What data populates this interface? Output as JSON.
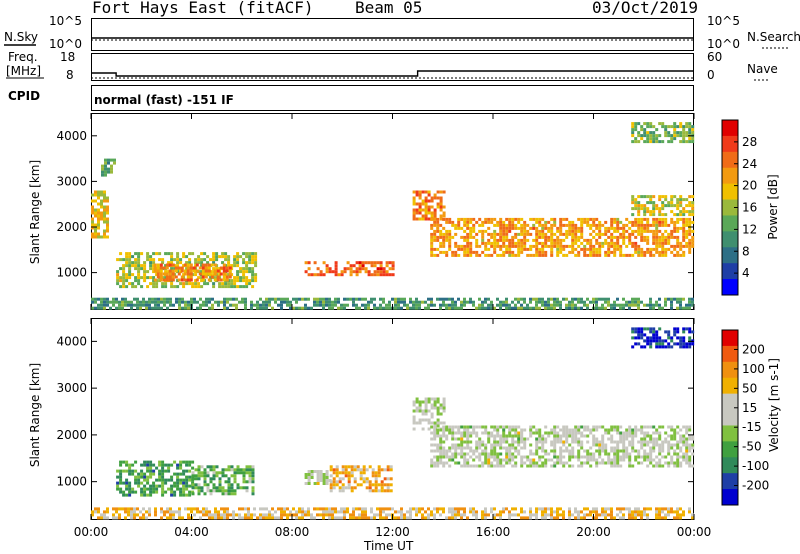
{
  "header": {
    "station": "Fort Hays East (fitACF)",
    "beam": "Beam 05",
    "date": "03/Oct/2019"
  },
  "top_panel": {
    "left_label": "N.Sky",
    "right_label": "N.Search",
    "left_ticks": [
      "10^5",
      "10^0"
    ],
    "right_ticks": [
      "10^5",
      "10^0"
    ]
  },
  "freq_panel": {
    "left_label_1": "Freq.",
    "left_label_2": "[MHz]",
    "right_label": "Nave",
    "left_ticks": [
      "18",
      "8"
    ],
    "right_ticks": [
      "60",
      "0"
    ]
  },
  "cpid": {
    "label": "CPID",
    "value": "normal (fast) -151 IF"
  },
  "colors": {
    "power_scale": [
      "#0000ff",
      "#1f3fa6",
      "#2d6f86",
      "#3f8f6f",
      "#5aa858",
      "#9ab93c",
      "#f0c000",
      "#f39a10",
      "#f06c18",
      "#f03a1a",
      "#e00000"
    ],
    "velocity_scale": [
      "#e00000",
      "#f05a10",
      "#f09010",
      "#f0b000",
      "#c8c8c0",
      "#c8c8c0",
      "#80c040",
      "#40a040",
      "#308a5a",
      "#1f3fa6",
      "#0000d0"
    ]
  },
  "chart_data": [
    {
      "type": "heatmap",
      "name": "power",
      "xlabel": "",
      "ylabel": "Slant Range [km]",
      "x_ticks": [
        "00:00",
        "04:00",
        "08:00",
        "12:00",
        "16:00",
        "20:00",
        "00:00"
      ],
      "y_ticks": [
        1000,
        2000,
        3000,
        4000
      ],
      "ylim": [
        180,
        4500
      ],
      "colorbar": {
        "label": "Power [dB]",
        "ticks": [
          4,
          8,
          12,
          16,
          20,
          24,
          28
        ]
      },
      "regions": [
        {
          "t0": 0.0,
          "t1": 0.6,
          "r0": 1800,
          "r1": 2800,
          "level": 0.6
        },
        {
          "t0": 0.4,
          "t1": 0.9,
          "r0": 3150,
          "r1": 3500,
          "level": 0.4
        },
        {
          "t0": 1.0,
          "t1": 6.5,
          "r0": 700,
          "r1": 1450,
          "level": 0.5
        },
        {
          "t0": 2.5,
          "t1": 5.5,
          "r0": 850,
          "r1": 1200,
          "level": 0.72
        },
        {
          "t0": 8.5,
          "t1": 12.0,
          "r0": 950,
          "r1": 1250,
          "level": 0.78
        },
        {
          "t0": 12.8,
          "t1": 14.0,
          "r0": 2150,
          "r1": 2800,
          "level": 0.72
        },
        {
          "t0": 13.5,
          "t1": 24.0,
          "r0": 1350,
          "r1": 2200,
          "level": 0.68
        },
        {
          "t0": 21.5,
          "t1": 24.0,
          "r0": 2300,
          "r1": 2700,
          "level": 0.55
        },
        {
          "t0": 21.5,
          "t1": 24.0,
          "r0": 3900,
          "r1": 4300,
          "level": 0.45
        },
        {
          "t0": 0.0,
          "t1": 24.0,
          "r0": 200,
          "r1": 450,
          "level": 0.35
        }
      ]
    },
    {
      "type": "heatmap",
      "name": "velocity",
      "xlabel": "Time UT",
      "ylabel": "Slant Range [km]",
      "x_ticks": [
        "00:00",
        "04:00",
        "08:00",
        "12:00",
        "16:00",
        "20:00",
        "00:00"
      ],
      "y_ticks": [
        1000,
        2000,
        3000,
        4000
      ],
      "ylim": [
        180,
        4500
      ],
      "colorbar": {
        "label": "Velocity [m s-1]",
        "ticks": [
          200,
          100,
          50,
          15,
          -15,
          -50,
          -100,
          -200
        ]
      },
      "regions": [
        {
          "t0": 1.0,
          "t1": 4.0,
          "r0": 700,
          "r1": 1450,
          "level": 0.7
        },
        {
          "t0": 4.0,
          "t1": 6.5,
          "r0": 750,
          "r1": 1350,
          "level": 0.66
        },
        {
          "t0": 8.5,
          "t1": 9.5,
          "r0": 950,
          "r1": 1250,
          "level": 0.5
        },
        {
          "t0": 9.5,
          "t1": 12.0,
          "r0": 800,
          "r1": 1350,
          "level": 0.3
        },
        {
          "t0": 12.8,
          "t1": 14.0,
          "r0": 2150,
          "r1": 2800,
          "level": 0.5
        },
        {
          "t0": 13.5,
          "t1": 24.0,
          "r0": 1350,
          "r1": 2200,
          "level": 0.5
        },
        {
          "t0": 21.5,
          "t1": 24.0,
          "r0": 3900,
          "r1": 4300,
          "level": 0.9
        },
        {
          "t0": 0.0,
          "t1": 24.0,
          "r0": 200,
          "r1": 450,
          "level": 0.33
        }
      ]
    }
  ]
}
